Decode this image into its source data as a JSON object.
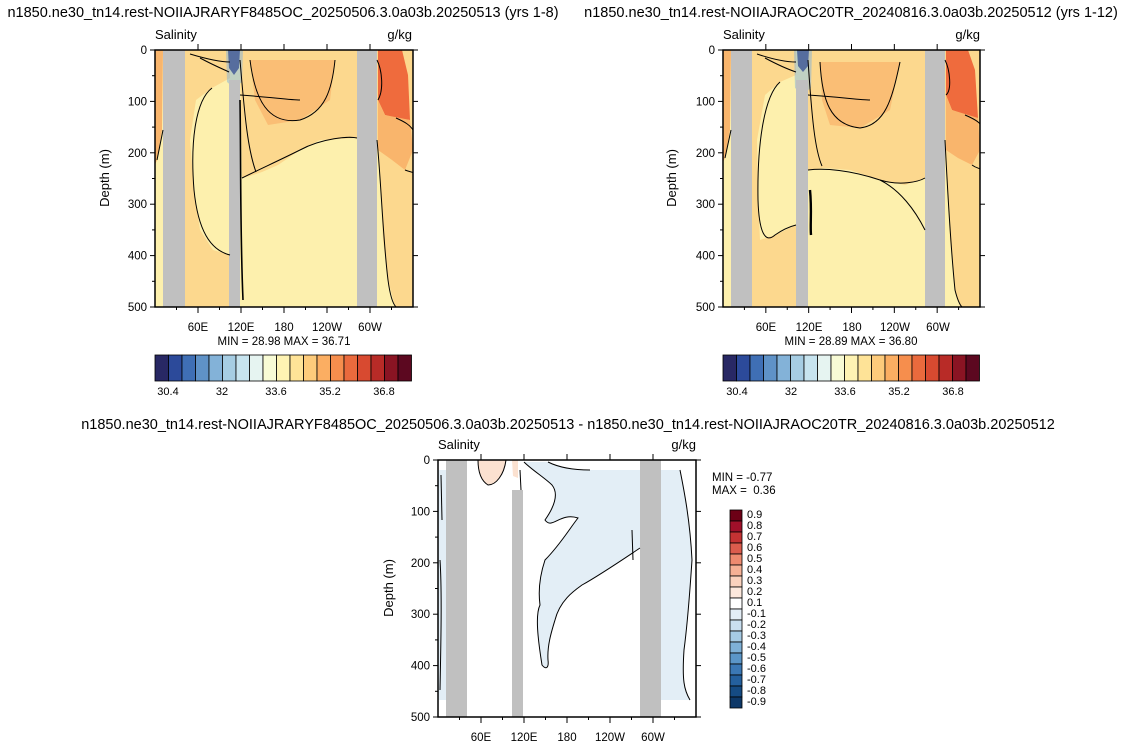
{
  "chart_data": [
    {
      "type": "heatmap",
      "title": "n1850.ne30_tn14.rest-NOIIAJRARYF8485OC_20250506.3.0a03b.20250513 (yrs 1-8)",
      "left_label": "Salinity",
      "right_label": "g/kg",
      "ylabel": "Depth (m)",
      "ylim": [
        500,
        0
      ],
      "yticks": [
        0,
        100,
        200,
        300,
        400,
        500
      ],
      "xticks": [
        "60E",
        "120E",
        "180",
        "120W",
        "60W"
      ],
      "stats": "MIN = 28.98 MAX = 36.71",
      "colorbar": {
        "orientation": "horizontal",
        "labels": [
          "30.4",
          "32",
          "33.6",
          "35.2",
          "36.8"
        ]
      }
    },
    {
      "type": "heatmap",
      "title": "n1850.ne30_tn14.rest-NOIIAJRAOC20TR_20240816.3.0a03b.20250512 (yrs 1-12)",
      "left_label": "Salinity",
      "right_label": "g/kg",
      "ylabel": "Depth (m)",
      "ylim": [
        500,
        0
      ],
      "yticks": [
        0,
        100,
        200,
        300,
        400,
        500
      ],
      "xticks": [
        "60E",
        "120E",
        "180",
        "120W",
        "60W"
      ],
      "stats": "MIN = 28.89 MAX = 36.80",
      "colorbar": {
        "orientation": "horizontal",
        "labels": [
          "30.4",
          "32",
          "33.6",
          "35.2",
          "36.8"
        ]
      }
    },
    {
      "type": "heatmap",
      "title": "n1850.ne30_tn14.rest-NOIIAJRARYF8485OC_20250506.3.0a03b.20250513 - n1850.ne30_tn14.rest-NOIIAJRAOC20TR_20240816.3.0a03b.20250512",
      "left_label": "Salinity",
      "right_label": "g/kg",
      "ylabel": "Depth (m)",
      "ylim": [
        500,
        0
      ],
      "yticks": [
        0,
        100,
        200,
        300,
        400,
        500
      ],
      "xticks": [
        "60E",
        "120E",
        "180",
        "120W",
        "60W"
      ],
      "stats_min": "MIN = -0.77",
      "stats_max": "MAX =  0.36",
      "colorbar": {
        "orientation": "vertical",
        "labels": [
          "0.9",
          "0.8",
          "0.7",
          "0.6",
          "0.5",
          "0.4",
          "0.3",
          "0.2",
          "0.1",
          "-0.1",
          "-0.2",
          "-0.3",
          "-0.4",
          "-0.5",
          "-0.6",
          "-0.7",
          "-0.8",
          "-0.9"
        ]
      }
    }
  ],
  "colors": {
    "land": "#c0c0c0",
    "fill_fresh": "#fdf0ad",
    "fill_mid": "#fcd88e",
    "fill_salty": "#f9b56c",
    "fill_max": "#ef6b3d",
    "diff_neg": "#e3eef6",
    "diff_pos": "#fbe1d0",
    "salinity_scale": [
      "#282864",
      "#2c4a9a",
      "#3f6fb5",
      "#5f92c7",
      "#83b2d8",
      "#a6cde3",
      "#c7e4ef",
      "#e6f4f1",
      "#f8fbd5",
      "#fef3b3",
      "#fee397",
      "#fdcb7b",
      "#fbae62",
      "#f68e4d",
      "#ea6a3d",
      "#d84a30",
      "#b82b27",
      "#8a1423",
      "#5c0820"
    ],
    "diff_scale": [
      "#6d0016",
      "#a0102a",
      "#c43233",
      "#dc5c4d",
      "#ee8a6f",
      "#f6b195",
      "#fbd2bd",
      "#fde8dc",
      "#ffffff",
      "#e4eef6",
      "#c9dff0",
      "#a6cbe4",
      "#7fb1d7",
      "#5b96c8",
      "#3b78b5",
      "#24609e",
      "#154b83",
      "#0d3868"
    ]
  }
}
